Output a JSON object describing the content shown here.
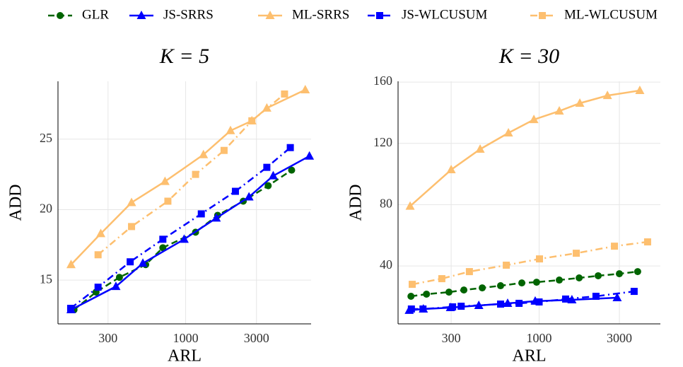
{
  "chart_data": [
    {
      "type": "line",
      "title": "K = 5",
      "x_label": "ARL",
      "y_label": "ADD",
      "xlog": true,
      "grid": true,
      "xlim": [
        138,
        7000
      ],
      "ylim": [
        11.9,
        29.1
      ],
      "xticks": [
        300,
        1000,
        3000
      ],
      "yticks": [
        15,
        20,
        25
      ],
      "series": [
        {
          "name": "GLR",
          "color": "#006400",
          "dash": "dashed",
          "marker": "circle",
          "x": [
            177,
            249,
            358,
            538,
            702,
            1166,
            1643,
            2444,
            3597,
            5176
          ],
          "values": [
            12.9,
            14.15,
            15.2,
            16.1,
            17.3,
            18.4,
            19.6,
            20.6,
            21.7,
            22.8
          ]
        },
        {
          "name": "JS-SRRS",
          "color": "#0000ff",
          "dash": "solid",
          "marker": "triangle",
          "x": [
            169,
            339,
            515,
            977,
            1607,
            2671,
            3890,
            6820
          ],
          "values": [
            12.9,
            14.55,
            16.2,
            17.9,
            19.4,
            20.9,
            22.4,
            23.8
          ]
        },
        {
          "name": "ML-SRRS",
          "color": "#fdbf6f",
          "dash": "solid",
          "marker": "triangle",
          "x": [
            169,
            268,
            432,
            726,
            1318,
            2005,
            2793,
            3523,
            6394
          ],
          "values": [
            16.1,
            18.3,
            20.5,
            22.0,
            23.9,
            25.6,
            26.3,
            27.2,
            28.5
          ]
        },
        {
          "name": "JS-WLCUSUM",
          "color": "#0000ff",
          "dash": "dotdash",
          "marker": "square",
          "x": [
            168,
            257,
            423,
            702,
            1275,
            2164,
            3523,
            5070
          ],
          "values": [
            13.0,
            14.5,
            16.3,
            17.9,
            19.7,
            21.3,
            23.0,
            24.4
          ]
        },
        {
          "name": "ML-WLCUSUM",
          "color": "#fdbf6f",
          "dash": "dotdash",
          "marker": "square",
          "x": [
            257,
            432,
            759,
            1166,
            1815,
            2793,
            4636
          ],
          "values": [
            16.8,
            18.8,
            20.6,
            22.5,
            24.2,
            26.3,
            28.2
          ]
        }
      ]
    },
    {
      "type": "line",
      "title": "K = 30",
      "x_label": "ARL",
      "y_label": "ADD",
      "xlog": true,
      "grid": true,
      "xlim": [
        145,
        5260
      ],
      "ylim": [
        2.2,
        160.5
      ],
      "xticks": [
        300,
        1000,
        3000
      ],
      "yticks": [
        40,
        80,
        120,
        160
      ],
      "series": [
        {
          "name": "GLR",
          "color": "#006400",
          "dash": "dashed",
          "marker": "circle",
          "x": [
            173,
            214,
            291,
            357,
            459,
            590,
            789,
            966,
            1318,
            1730,
            2245,
            3000,
            3855
          ],
          "values": [
            20.2,
            21.6,
            22.9,
            24.3,
            25.7,
            27.1,
            28.9,
            29.4,
            30.8,
            32.2,
            33.6,
            34.9,
            36.3
          ]
        },
        {
          "name": "JS-SRRS",
          "color": "#0000ff",
          "dash": "solid",
          "marker": "triangle",
          "x": [
            169,
            205,
            297,
            438,
            650,
            948,
            1567,
            2911
          ],
          "values": [
            11.0,
            11.9,
            12.8,
            14.2,
            15.6,
            17.0,
            17.9,
            19.3
          ]
        },
        {
          "name": "ML-SRRS",
          "color": "#fdbf6f",
          "dash": "solid",
          "marker": "triangle",
          "x": [
            171,
            300,
            446,
            657,
            931,
            1318,
            1746,
            2548,
            3970
          ],
          "values": [
            79,
            102.8,
            116.2,
            126.8,
            135.5,
            141.1,
            146.2,
            151.2,
            154.5
          ]
        },
        {
          "name": "JS-WLCUSUM",
          "color": "#0000ff",
          "dash": "dotdash",
          "marker": "square",
          "x": [
            174,
            204,
            306,
            344,
            590,
            760,
            1000,
            1438,
            2178,
            3673
          ],
          "values": [
            11.9,
            11.9,
            13.3,
            13.7,
            15.1,
            15.6,
            16.5,
            18.4,
            20.2,
            23.4
          ]
        },
        {
          "name": "ML-WLCUSUM",
          "color": "#fdbf6f",
          "dash": "dotdash",
          "marker": "square",
          "x": [
            176,
            264,
            385,
            638,
            1005,
            1663,
            2805,
            4416
          ],
          "values": [
            28,
            31.7,
            36.3,
            40.5,
            44.6,
            48.3,
            52.9,
            55.7
          ]
        }
      ]
    }
  ]
}
